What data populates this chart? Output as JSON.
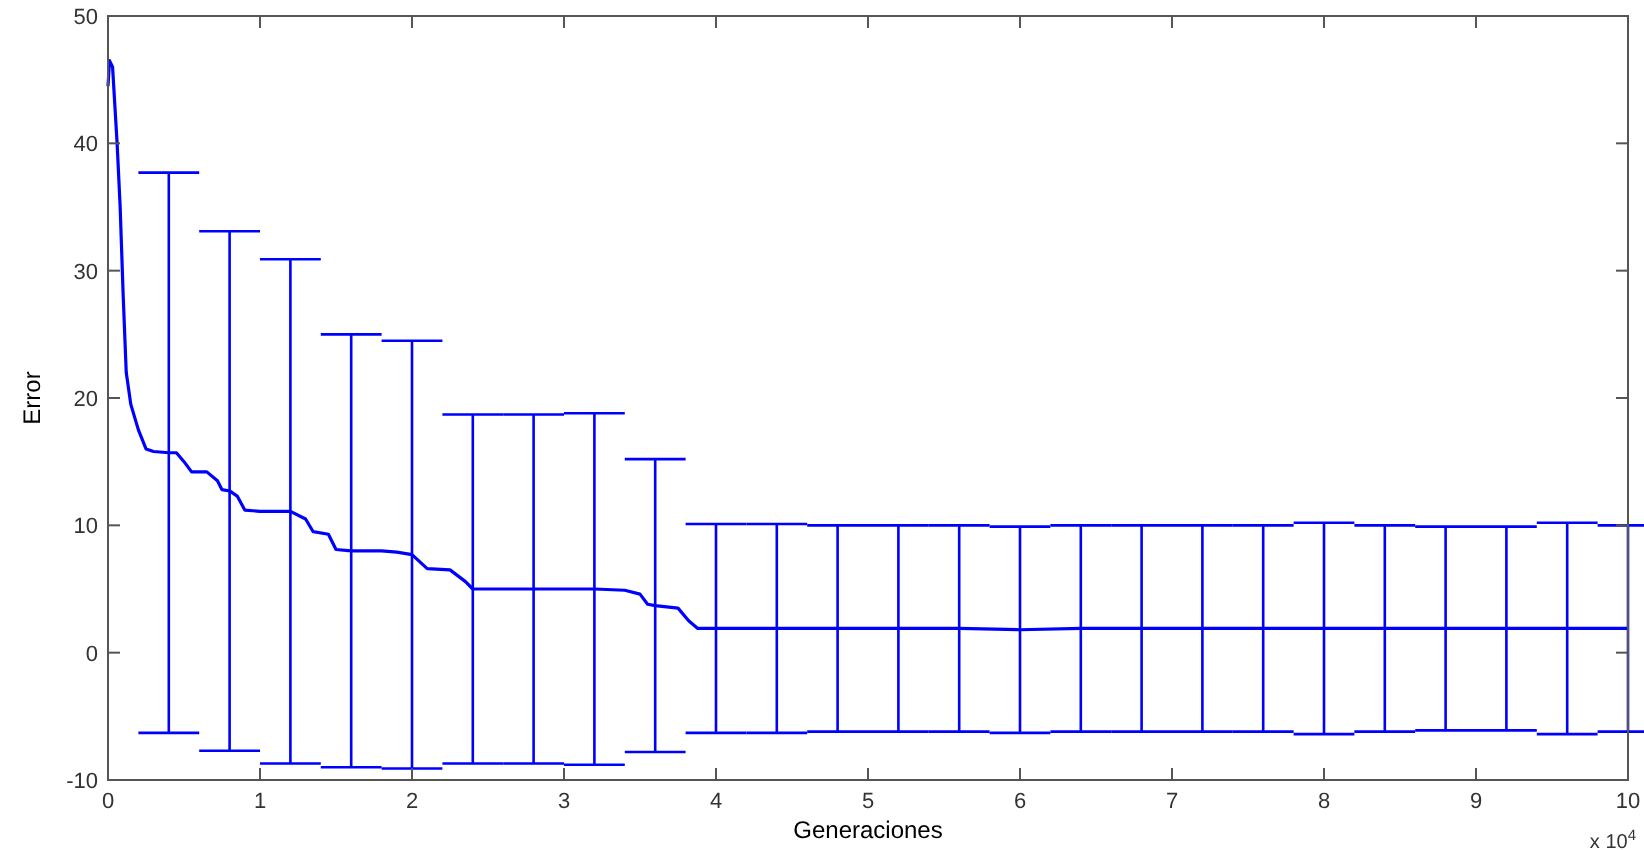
{
  "chart_data": {
    "type": "line",
    "xlabel": "Generaciones",
    "ylabel": "Error",
    "annotations": [
      "x 10$^{4}$"
    ],
    "xlim": [
      0,
      10
    ],
    "ylim": [
      -10,
      50
    ],
    "xticks": [
      0,
      1,
      2,
      3,
      4,
      5,
      6,
      7,
      8,
      9,
      10
    ],
    "yticks": [
      -10,
      0,
      10,
      20,
      30,
      40,
      50
    ],
    "x": [
      0,
      0.01,
      0.03,
      0.06,
      0.08,
      0.1,
      0.12,
      0.15,
      0.2,
      0.25,
      0.3,
      0.4,
      0.45,
      0.5,
      0.55,
      0.65,
      0.72,
      0.75,
      0.8,
      0.85,
      0.9,
      1.0,
      1.1,
      1.2,
      1.3,
      1.35,
      1.45,
      1.5,
      1.6,
      1.8,
      1.9,
      2.0,
      2.1,
      2.25,
      2.35,
      2.4,
      2.8,
      3.2,
      3.4,
      3.5,
      3.55,
      3.6,
      3.75,
      3.82,
      3.88,
      4.0,
      4.4,
      4.8,
      5.2,
      5.6,
      6.0,
      6.4,
      6.8,
      7.2,
      7.6,
      8.0,
      8.4,
      8.8,
      9.2,
      9.6,
      10.0
    ],
    "series": [
      {
        "color": "#0000ff",
        "values": [
          44.5,
          46.5,
          46,
          40,
          35,
          28,
          22,
          19.5,
          17.5,
          16,
          15.8,
          15.7,
          15.7,
          15,
          14.2,
          14.2,
          13.5,
          12.8,
          12.7,
          12.3,
          11.2,
          11.1,
          11.1,
          11.1,
          10.5,
          9.5,
          9.3,
          8.1,
          8.0,
          8.0,
          7.9,
          7.7,
          6.6,
          6.5,
          5.6,
          5.0,
          5.0,
          5.0,
          4.9,
          4.6,
          3.8,
          3.7,
          3.5,
          2.5,
          1.9,
          1.9,
          1.9,
          1.9,
          1.9,
          1.9,
          1.8,
          1.9,
          1.9,
          1.9,
          1.9,
          1.9,
          1.9,
          1.9,
          1.9,
          1.9,
          1.9
        ],
        "errors": [
          null,
          null,
          null,
          null,
          null,
          null,
          null,
          null,
          null,
          null,
          null,
          22,
          null,
          null,
          null,
          null,
          null,
          null,
          20.4,
          null,
          null,
          null,
          null,
          19.8,
          null,
          null,
          null,
          null,
          17.0,
          null,
          null,
          16.8,
          null,
          null,
          null,
          13.7,
          13.7,
          13.8,
          null,
          null,
          null,
          11.5,
          null,
          null,
          null,
          8.2,
          8.2,
          8.1,
          8.1,
          8.1,
          8.1,
          8.1,
          8.1,
          8.1,
          8.1,
          8.3,
          8.1,
          8.0,
          8.0,
          8.3,
          8.1
        ]
      }
    ]
  }
}
